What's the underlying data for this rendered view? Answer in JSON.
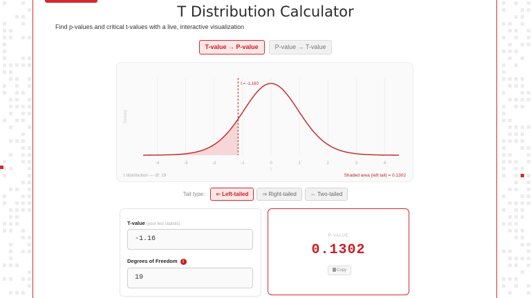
{
  "header": {
    "title": "T Distribution Calculator",
    "subtitle": "Find p-values and critical t-values with a live, interactive visualization"
  },
  "mode_tabs": [
    {
      "label": "T-value → P-value",
      "active": true
    },
    {
      "label": "P-value → T-value",
      "active": false
    }
  ],
  "chart": {
    "y_axis_label": "Density",
    "x_axis_label": "t",
    "x_ticks": [
      "-4",
      "-3",
      "-2",
      "-1",
      "0",
      "1",
      "2",
      "3",
      "4"
    ],
    "marker_label": "t = -1.160",
    "footer_left": "t distribution — df: 19",
    "footer_right": "Shaded area (left tail) = 0.1302"
  },
  "chart_data": {
    "type": "area",
    "distribution": "t",
    "df": 19,
    "t_value": -1.16,
    "shaded_tail": "left",
    "shaded_area": 0.1302,
    "xlim": [
      -4.5,
      4.5
    ],
    "x_ticks": [
      -4,
      -3,
      -2,
      -1,
      0,
      1,
      2,
      3,
      4
    ],
    "grid": true
  },
  "tail": {
    "label": "Tail type:",
    "options": [
      {
        "label": "⇐ Left-tailed",
        "active": true
      },
      {
        "label": "⇒ Right-tailed",
        "active": false
      },
      {
        "label": "⇔ Two-tailed",
        "active": false
      }
    ]
  },
  "inputs": {
    "t_label": "T-value",
    "t_hint": "(your test statistic)",
    "t_value": "-1.16",
    "df_label": "Degrees of Freedom",
    "df_value": "19"
  },
  "result": {
    "label": "P-VALUE",
    "value": "0.1302",
    "copy_label": "Copy"
  },
  "colors": {
    "accent": "#d6282c",
    "accent_light": "#fde7e7",
    "curve": "#c81e22",
    "shade": "#f6cfd0"
  }
}
